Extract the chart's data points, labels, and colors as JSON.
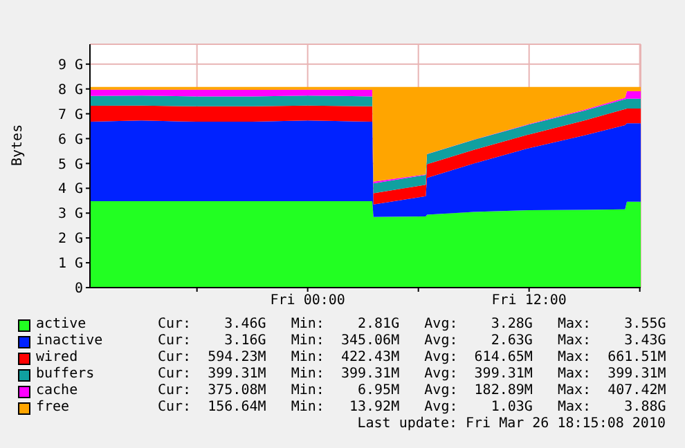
{
  "chart_data": {
    "type": "area",
    "stacked": true,
    "ylabel": "Bytes",
    "x": [
      "2010-03-25T12:12",
      "2010-03-25T15:00",
      "2010-03-25T18:00",
      "2010-03-25T21:00",
      "2010-03-26T00:00",
      "2010-03-26T03:30",
      "2010-03-26T03:34",
      "2010-03-26T06:24",
      "2010-03-26T06:28",
      "2010-03-26T09:00",
      "2010-03-26T12:00",
      "2010-03-26T15:00",
      "2010-03-26T17:12",
      "2010-03-26T17:18",
      "2010-03-26T18:03"
    ],
    "series": [
      {
        "name": "active",
        "color": "#22ff22",
        "values": [
          3.48,
          3.48,
          3.48,
          3.48,
          3.48,
          3.48,
          2.85,
          2.87,
          2.94,
          3.05,
          3.12,
          3.13,
          3.15,
          3.46,
          3.46
        ]
      },
      {
        "name": "inactive",
        "color": "#0022ff",
        "values": [
          3.2,
          3.25,
          3.2,
          3.2,
          3.25,
          3.2,
          0.5,
          0.81,
          1.48,
          1.95,
          2.5,
          3.0,
          3.39,
          3.16,
          3.16
        ]
      },
      {
        "name": "wired",
        "color": "#ff0000",
        "values": [
          0.64,
          0.6,
          0.62,
          0.62,
          0.6,
          0.62,
          0.45,
          0.46,
          0.55,
          0.55,
          0.55,
          0.6,
          0.65,
          0.59,
          0.59
        ]
      },
      {
        "name": "buffers",
        "color": "#10a0a0",
        "values": [
          0.4,
          0.4,
          0.4,
          0.4,
          0.4,
          0.4,
          0.4,
          0.4,
          0.4,
          0.4,
          0.4,
          0.4,
          0.4,
          0.4,
          0.4
        ]
      },
      {
        "name": "cache",
        "color": "#ff00ff",
        "values": [
          0.25,
          0.24,
          0.27,
          0.26,
          0.24,
          0.26,
          0.07,
          0.02,
          0.01,
          0.01,
          0.02,
          0.03,
          0.05,
          0.3,
          0.3
        ]
      },
      {
        "name": "free",
        "color": "#ffa500",
        "values": [
          0.11,
          0.11,
          0.11,
          0.12,
          0.11,
          0.12,
          3.81,
          3.52,
          2.7,
          2.12,
          1.49,
          0.92,
          0.44,
          0.17,
          0.17
        ]
      }
    ],
    "xlim": [
      "2010-03-25T12:12",
      "2010-03-26T18:03"
    ],
    "xticks": [
      {
        "value": "2010-03-25T18:00",
        "label": null
      },
      {
        "value": "2010-03-26T00:00",
        "label": "Fri 00:00"
      },
      {
        "value": "2010-03-26T06:00",
        "label": null
      },
      {
        "value": "2010-03-26T12:00",
        "label": "Fri 12:00"
      },
      {
        "value": "2010-03-26T18:00",
        "label": null
      }
    ],
    "ylim": [
      0,
      9.8
    ],
    "yticks": [
      0,
      {
        "value": 1,
        "label": "1 G"
      },
      {
        "value": 2,
        "label": "2 G"
      },
      {
        "value": 3,
        "label": "3 G"
      },
      {
        "value": 4,
        "label": "4 G"
      },
      {
        "value": 5,
        "label": "5 G"
      },
      {
        "value": 6,
        "label": "6 G"
      },
      {
        "value": 7,
        "label": "7 G"
      },
      {
        "value": 8,
        "label": "8 G"
      },
      {
        "value": 9,
        "label": "9 G"
      }
    ],
    "grid": true,
    "legend": "bottom",
    "annotations": [
      "Cur:    3.46G   Min:    2.81G   Avg:    3.28G   Max:    3.55G",
      "Cur:    3.16G   Min:  345.06M   Avg:    2.63G   Max:    3.43G",
      "Cur:  594.23M   Min:  422.43M   Avg:  614.65M   Max:  661.51M",
      "Cur:  399.31M   Min:  399.31M   Avg:  399.31M   Max:  399.31M",
      "Cur:  375.08M   Min:    6.95M   Avg:  182.89M   Max:  407.42M",
      "Cur:  156.64M   Min:   13.92M   Avg:    1.03G   Max:    3.88G",
      "Last update: Fri Mar 26 18:15:08 2010"
    ]
  }
}
